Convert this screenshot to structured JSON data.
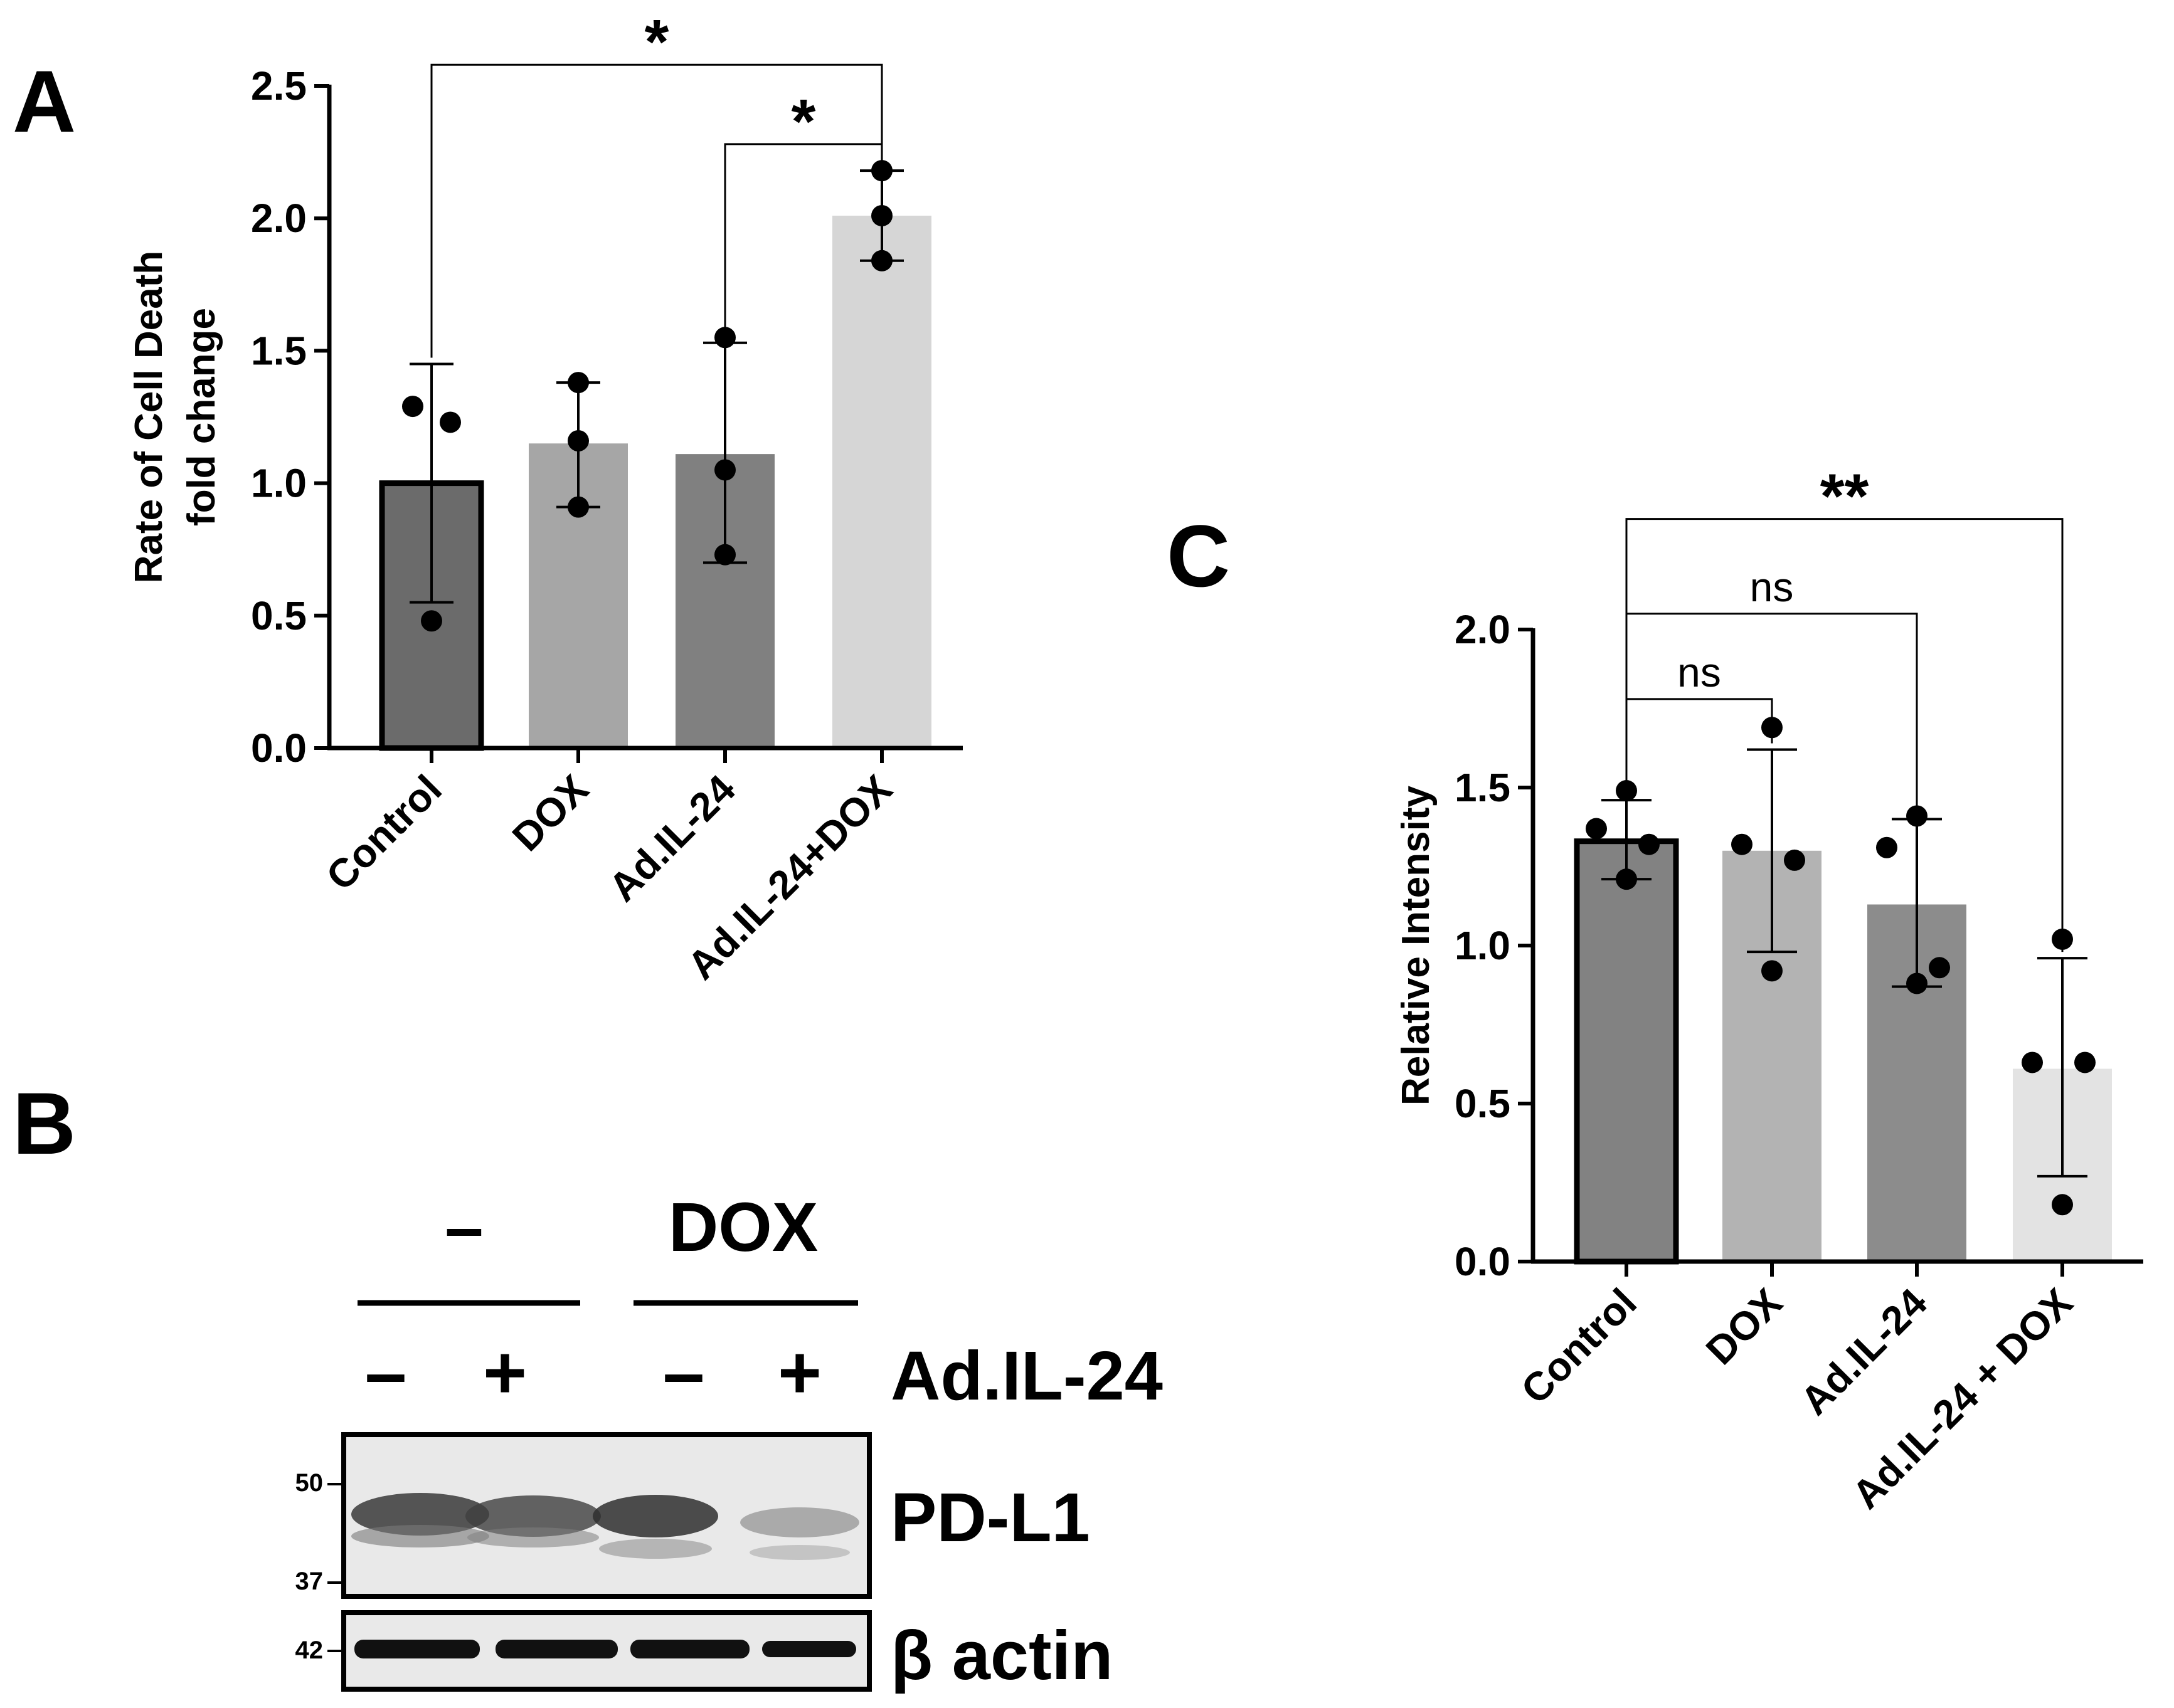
{
  "panels": {
    "a": {
      "letter": "A"
    },
    "b": {
      "letter": "B",
      "treatment_groups": [
        "–",
        "DOX"
      ],
      "adil24_label": "Ad.IL-24",
      "lane_signs": [
        "–",
        "+",
        "–",
        "+"
      ],
      "blots": [
        {
          "label": "PD-L1",
          "markers": [
            "50",
            "37"
          ]
        },
        {
          "label": "β actin",
          "markers": [
            "42"
          ]
        }
      ]
    },
    "c": {
      "letter": "C"
    }
  },
  "colors": {
    "control": "#6b6b6b",
    "dox": "#a6a6a6",
    "adil24": "#808080",
    "combo": "#d6d6d6",
    "c_control": "#828282",
    "c_dox": "#b3b3b3",
    "c_adil24": "#8c8c8c",
    "c_combo": "#e3e3e3"
  },
  "chart_data": [
    {
      "panel": "A",
      "type": "bar",
      "ylabel": [
        "Rate of Cell Death",
        "fold change"
      ],
      "ylim": [
        0,
        2.5
      ],
      "yticks": [
        "0.0",
        "0.5",
        "1.0",
        "1.5",
        "2.0",
        "2.5"
      ],
      "categories": [
        "Control",
        "DOX",
        "Ad.IL-24",
        "Ad.IL-24+DOX"
      ],
      "values": [
        1.0,
        1.15,
        1.11,
        2.01
      ],
      "err_low": [
        0.55,
        0.91,
        0.7,
        1.84
      ],
      "err_high": [
        1.45,
        1.38,
        1.53,
        2.18
      ],
      "points": [
        [
          1.29,
          1.23,
          0.48
        ],
        [
          1.38,
          1.16,
          0.91
        ],
        [
          1.55,
          1.05,
          0.73
        ],
        [
          2.18,
          2.01,
          1.84
        ]
      ],
      "significance": [
        {
          "from": 0,
          "to": 3,
          "label": "*",
          "y": 2.58
        },
        {
          "from": 2,
          "to": 3,
          "label": "*",
          "y": 2.28
        }
      ]
    },
    {
      "panel": "C",
      "type": "bar",
      "ylabel": [
        "Relative Intensity"
      ],
      "ylim": [
        0,
        2.0
      ],
      "yticks": [
        "0.0",
        "0.5",
        "1.0",
        "1.5",
        "2.0"
      ],
      "categories": [
        "Control",
        "DOX",
        "Ad.IL-24",
        "Ad.IL-24 + DOX"
      ],
      "values": [
        1.33,
        1.3,
        1.13,
        0.61
      ],
      "err_low": [
        1.21,
        0.98,
        0.87,
        0.27
      ],
      "err_high": [
        1.46,
        1.62,
        1.4,
        0.96
      ],
      "points": [
        [
          1.49,
          1.37,
          1.32,
          1.21
        ],
        [
          1.69,
          1.32,
          1.27,
          0.92
        ],
        [
          1.41,
          1.31,
          0.93,
          0.88
        ],
        [
          1.02,
          0.63,
          0.63,
          0.18
        ]
      ],
      "significance": [
        {
          "from": 0,
          "to": 3,
          "label": "**",
          "y": 2.35
        },
        {
          "from": 0,
          "to": 2,
          "label": "ns",
          "y": 2.05
        },
        {
          "from": 0,
          "to": 1,
          "label": "ns",
          "y": 1.78
        }
      ]
    }
  ]
}
